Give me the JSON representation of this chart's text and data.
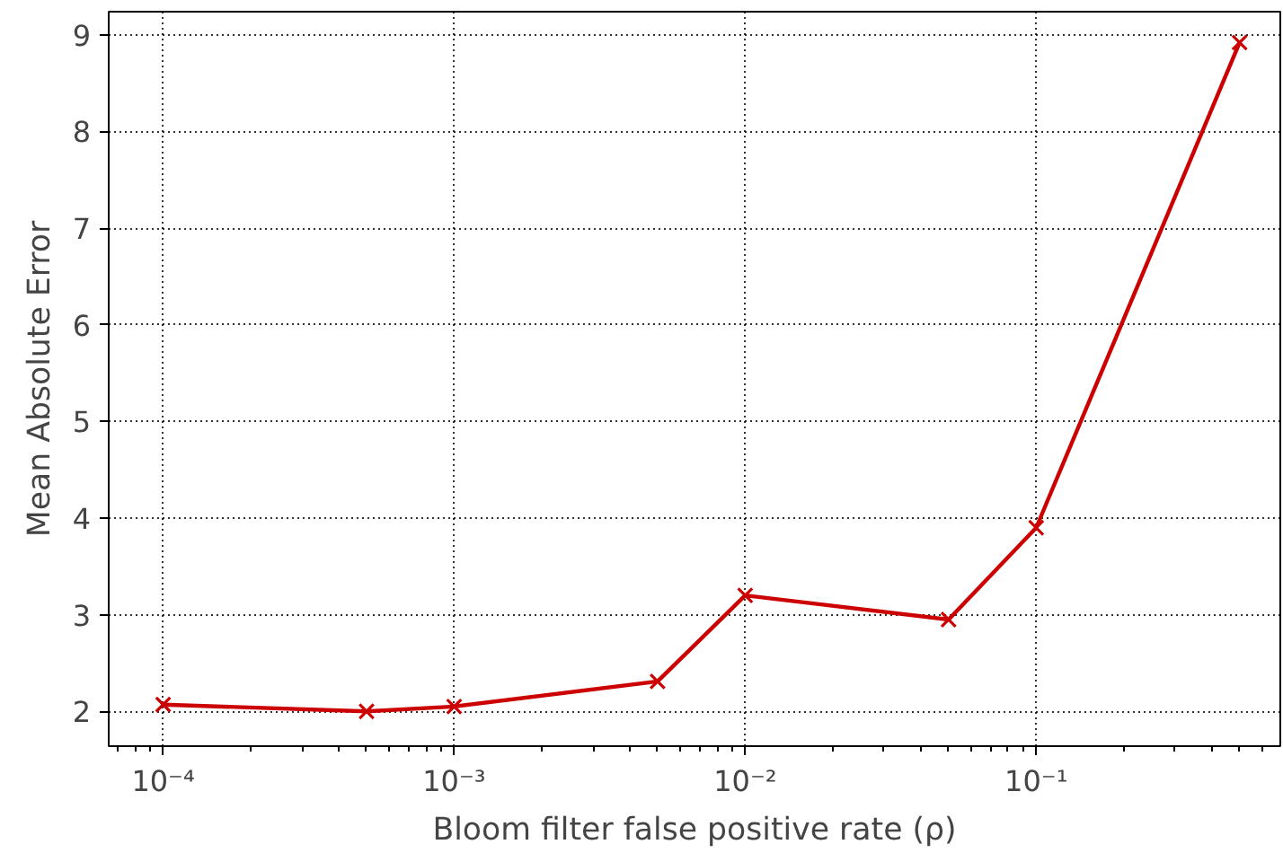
{
  "chart_data": {
    "type": "line",
    "xlabel": "Bloom filter false positive rate (ρ)",
    "ylabel": "Mean Absolute Error",
    "x": [
      0.0001,
      0.0005,
      0.001,
      0.005,
      0.01,
      0.05,
      0.1,
      0.5
    ],
    "series": [
      {
        "color": "#cc0000",
        "values": [
          2.07,
          2.0,
          2.05,
          2.31,
          3.2,
          2.95,
          3.9,
          8.92
        ]
      }
    ],
    "log": "x",
    "xlim": [
      6.5e-05,
      0.69
    ],
    "ylim": [
      1.64,
      9.24
    ],
    "xticks": [
      {
        "value": 0.0001,
        "label": "10⁻⁴"
      },
      {
        "value": 0.001,
        "label": "10⁻³"
      },
      {
        "value": 0.01,
        "label": "10⁻²"
      },
      {
        "value": 0.1,
        "label": "10⁻¹"
      }
    ],
    "yticks": [
      2,
      3,
      4,
      5,
      6,
      7,
      8,
      9
    ],
    "grid": true,
    "marker": "cross",
    "line_style": "solid"
  }
}
